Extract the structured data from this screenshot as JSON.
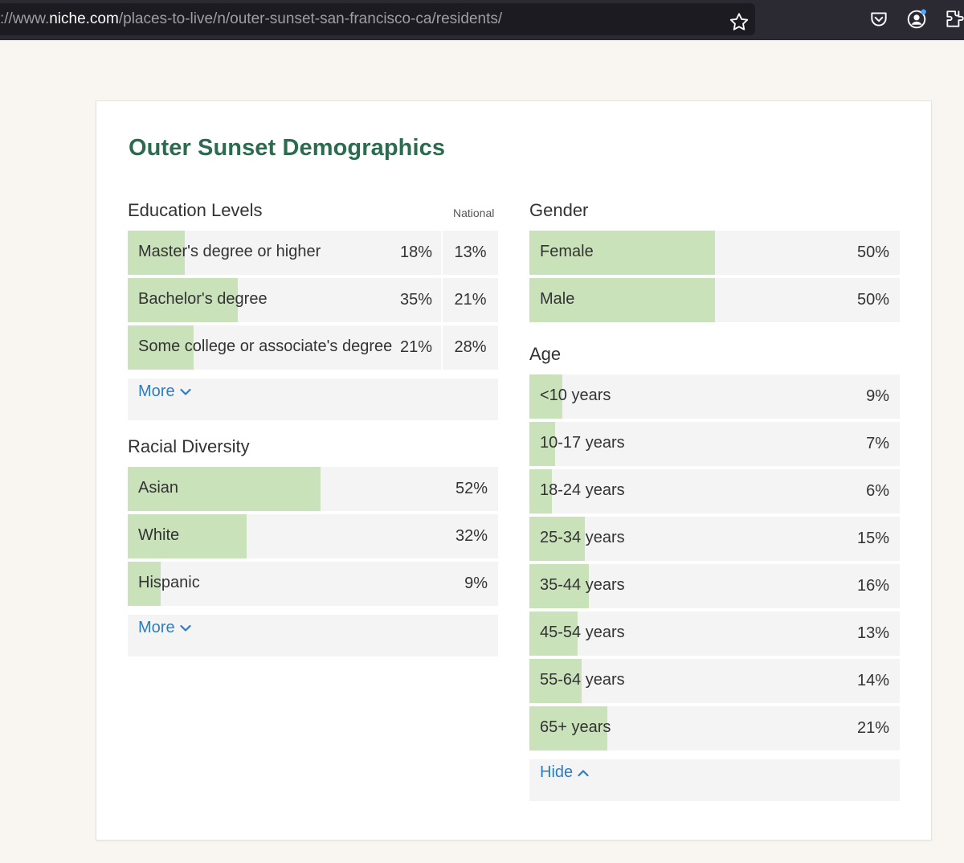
{
  "browser": {
    "url_prefix": "://www.",
    "url_host": "niche.com",
    "url_path": "/places-to-live/n/outer-sunset-san-francisco-ca/residents/"
  },
  "page": {
    "title": "Outer Sunset Demographics"
  },
  "education": {
    "title": "Education Levels",
    "national_header": "National",
    "rows": [
      {
        "label": "Master's degree or higher",
        "value": "18%",
        "national": "13%",
        "fill_pct": 18
      },
      {
        "label": "Bachelor's degree",
        "value": "35%",
        "national": "21%",
        "fill_pct": 35
      },
      {
        "label": "Some college or associate's degree",
        "value": "21%",
        "national": "28%",
        "fill_pct": 21
      }
    ],
    "toggle_label": "More"
  },
  "racial": {
    "title": "Racial Diversity",
    "rows": [
      {
        "label": "Asian",
        "value": "52%",
        "fill_pct": 52
      },
      {
        "label": "White",
        "value": "32%",
        "fill_pct": 32
      },
      {
        "label": "Hispanic",
        "value": "9%",
        "fill_pct": 9
      }
    ],
    "toggle_label": "More"
  },
  "gender": {
    "title": "Gender",
    "rows": [
      {
        "label": "Female",
        "value": "50%",
        "fill_pct": 50
      },
      {
        "label": "Male",
        "value": "50%",
        "fill_pct": 50
      }
    ]
  },
  "age": {
    "title": "Age",
    "rows": [
      {
        "label": "<10 years",
        "value": "9%",
        "fill_pct": 9
      },
      {
        "label": "10-17 years",
        "value": "7%",
        "fill_pct": 7
      },
      {
        "label": "18-24 years",
        "value": "6%",
        "fill_pct": 6
      },
      {
        "label": "25-34 years",
        "value": "15%",
        "fill_pct": 15
      },
      {
        "label": "35-44 years",
        "value": "16%",
        "fill_pct": 16
      },
      {
        "label": "45-54 years",
        "value": "13%",
        "fill_pct": 13
      },
      {
        "label": "55-64 years",
        "value": "14%",
        "fill_pct": 14
      },
      {
        "label": "65+ years",
        "value": "21%",
        "fill_pct": 21
      }
    ],
    "toggle_label": "Hide"
  },
  "colors": {
    "title_green": "#2c6b4f",
    "bar_fill": "#c9e2b9",
    "link_blue": "#2e7dc2"
  },
  "icons": [
    "star-icon",
    "pocket-icon",
    "account-icon",
    "extensions-icon",
    "chevron-down-icon",
    "chevron-up-icon"
  ]
}
